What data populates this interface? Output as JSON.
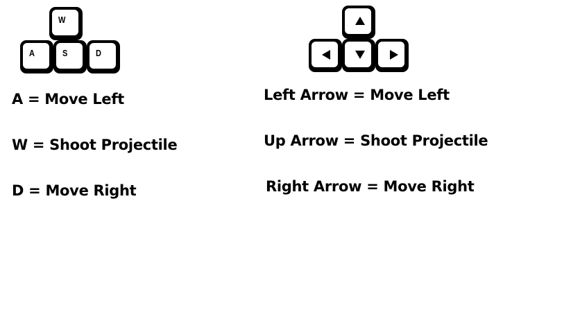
{
  "wasd_keys": {
    "w": "W",
    "a": "A",
    "s": "S",
    "d": "D"
  },
  "arrow_keys": {
    "up": "up-arrow-icon",
    "left": "left-arrow-icon",
    "down": "down-arrow-icon",
    "right": "right-arrow-icon"
  },
  "wasd_bindings": [
    "A = Move Left",
    "W = Shoot Projectile",
    "D = Move Right"
  ],
  "arrow_bindings": [
    "Left Arrow = Move Left",
    "Up Arrow = Shoot Projectile",
    "Right Arrow = Move Right"
  ],
  "colors": {
    "key_body": "#000000",
    "key_face": "#ffffff",
    "text": "#000000",
    "background": "#ffffff"
  }
}
